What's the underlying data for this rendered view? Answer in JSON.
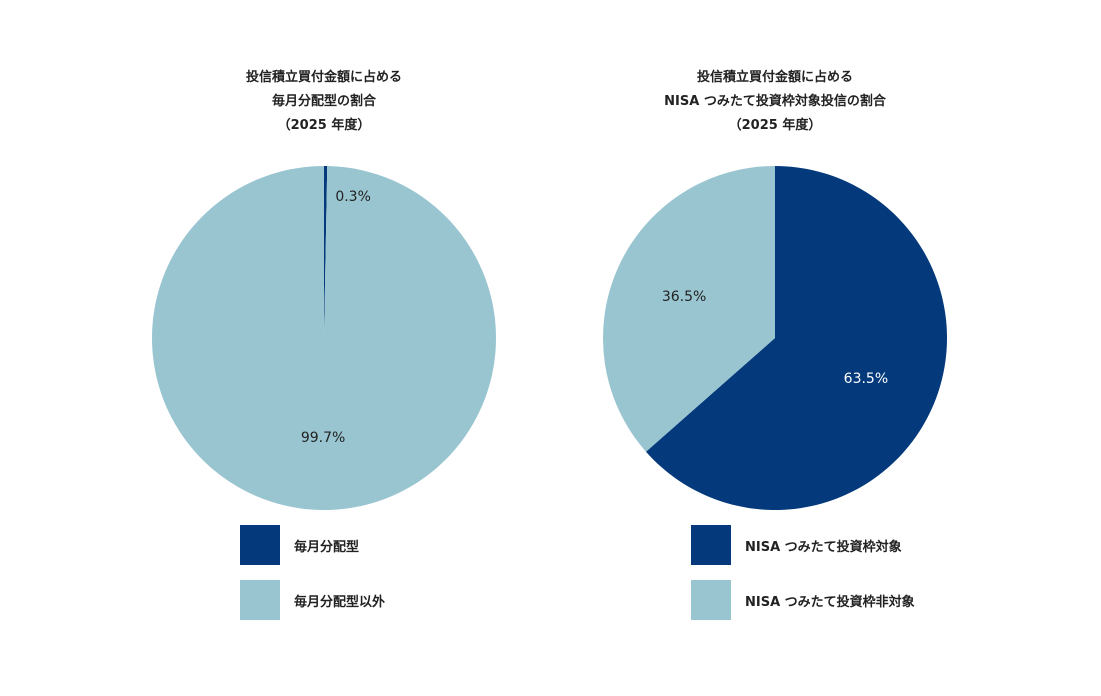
{
  "chart_data": [
    {
      "type": "pie",
      "title_lines": [
        "投信積立買付金額に占める",
        "毎月分配型の割合",
        "（2025 年度）"
      ],
      "categories": [
        "毎月分配型",
        "毎月分配型以外"
      ],
      "values": [
        0.3,
        99.7
      ],
      "value_labels": [
        "0.3%",
        "99.7%"
      ],
      "colors": [
        "#043a7b",
        "#99c5d1"
      ],
      "label_colors": [
        "#222222",
        "#222222"
      ],
      "legend_position": "bottom"
    },
    {
      "type": "pie",
      "title_lines": [
        "投信積立買付金額に占める",
        "NISA つみたて投資枠対象投信の割合",
        "（2025 年度）"
      ],
      "categories": [
        "NISA つみたて投資枠対象",
        "NISA つみたて投資枠非対象"
      ],
      "values": [
        63.5,
        36.5
      ],
      "value_labels": [
        "63.5%",
        "36.5%"
      ],
      "colors": [
        "#043a7b",
        "#99c5d1"
      ],
      "label_colors": [
        "#ffffff",
        "#222222"
      ],
      "legend_position": "bottom"
    }
  ]
}
